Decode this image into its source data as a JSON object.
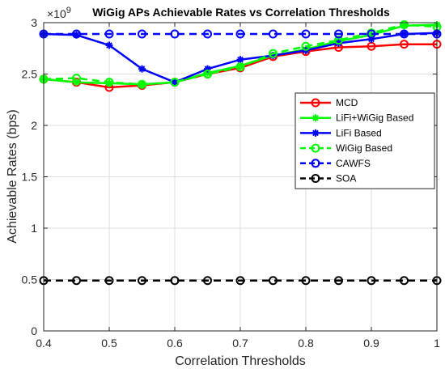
{
  "chart_data": {
    "type": "line",
    "title": "WiGig APs Achievable Rates vs Correlation Thresholds",
    "xlabel": "Correlation Thresholds",
    "ylabel": "Achievable Rates (bps)",
    "exponent_label": "×10",
    "exponent_power": "9",
    "xlim": [
      0.4,
      1
    ],
    "ylim": [
      0,
      3
    ],
    "xticks": [
      "0.4",
      "0.5",
      "0.6",
      "0.7",
      "0.8",
      "0.9",
      "1"
    ],
    "yticks": [
      "0",
      "0.5",
      "1",
      "1.5",
      "2",
      "2.5",
      "3"
    ],
    "grid": true,
    "legend_position": "right",
    "x": [
      0.4,
      0.45,
      0.5,
      0.55,
      0.6,
      0.65,
      0.7,
      0.75,
      0.8,
      0.85,
      0.9,
      0.95,
      1.0
    ],
    "series": [
      {
        "name": "MCD",
        "color": "#ff0000",
        "marker": "circle",
        "dash": false,
        "values": [
          2.45,
          2.42,
          2.37,
          2.39,
          2.42,
          2.5,
          2.56,
          2.67,
          2.72,
          2.76,
          2.77,
          2.79,
          2.79
        ]
      },
      {
        "name": "LiFi+WiGig Based",
        "color": "#00ff00",
        "marker": "star",
        "dash": false,
        "values": [
          2.45,
          2.42,
          2.41,
          2.4,
          2.42,
          2.51,
          2.58,
          2.68,
          2.74,
          2.82,
          2.88,
          2.97,
          2.98
        ]
      },
      {
        "name": "LiFi Based",
        "color": "#0000ff",
        "marker": "star",
        "dash": false,
        "values": [
          2.89,
          2.88,
          2.78,
          2.55,
          2.42,
          2.55,
          2.64,
          2.68,
          2.73,
          2.8,
          2.84,
          2.89,
          2.9
        ]
      },
      {
        "name": "WiGig Based",
        "color": "#00ff00",
        "marker": "circle",
        "dash": true,
        "values": [
          2.45,
          2.46,
          2.42,
          2.4,
          2.42,
          2.5,
          2.57,
          2.7,
          2.77,
          2.83,
          2.9,
          2.98,
          2.96
        ]
      },
      {
        "name": "CAWFS",
        "color": "#0000ff",
        "marker": "circle",
        "dash": true,
        "values": [
          2.89,
          2.89,
          2.89,
          2.89,
          2.89,
          2.89,
          2.89,
          2.89,
          2.89,
          2.89,
          2.89,
          2.89,
          2.89
        ]
      },
      {
        "name": "SOA",
        "color": "#000000",
        "marker": "circle",
        "dash": true,
        "values": [
          0.49,
          0.49,
          0.49,
          0.49,
          0.49,
          0.49,
          0.49,
          0.49,
          0.49,
          0.49,
          0.49,
          0.49,
          0.49
        ]
      }
    ]
  }
}
